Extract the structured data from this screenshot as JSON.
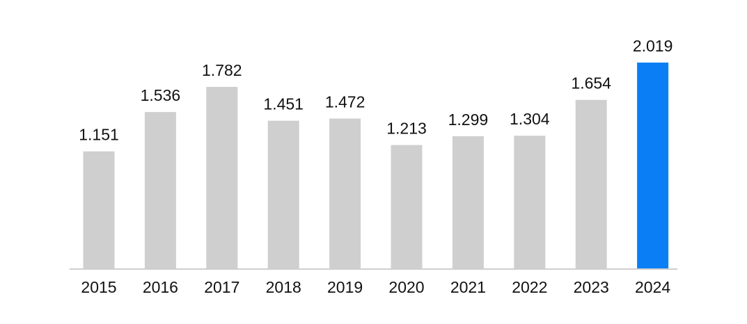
{
  "chart_data": {
    "type": "bar",
    "title": "",
    "xlabel": "",
    "ylabel": "",
    "categories": [
      "2015",
      "2016",
      "2017",
      "2018",
      "2019",
      "2020",
      "2021",
      "2022",
      "2023",
      "2024"
    ],
    "values": [
      1.151,
      1.536,
      1.782,
      1.451,
      1.472,
      1.213,
      1.299,
      1.304,
      1.654,
      2.019
    ],
    "value_labels": [
      "1.151",
      "1.536",
      "1.782",
      "1.451",
      "1.472",
      "1.213",
      "1.299",
      "1.304",
      "1.654",
      "2.019"
    ],
    "ylim": [
      0,
      2.019
    ],
    "grid": false,
    "legend": "none",
    "colors": {
      "default_bar": "#cfcfcf",
      "highlight_bar": "#0a7ff5",
      "axis": "#cfcfcf",
      "text": "#111111"
    },
    "highlight_category": "2024"
  }
}
